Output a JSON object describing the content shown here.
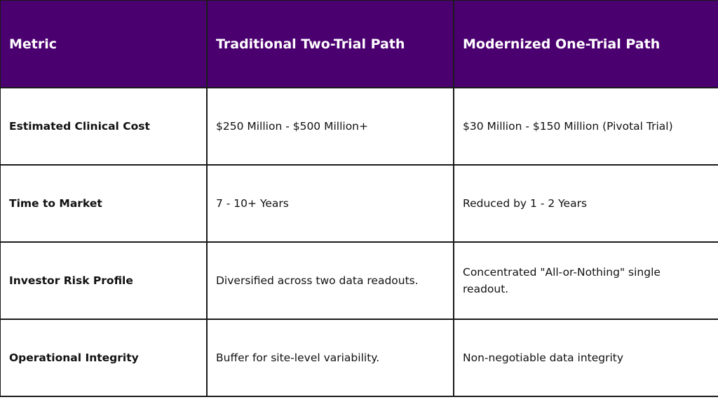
{
  "table": {
    "header": [
      "Metric",
      "Traditional Two-Trial Path",
      "Modernized One-Trial Path"
    ],
    "rows": [
      [
        "Estimated Clinical Cost",
        "$250 Million - $500 Million+",
        "$30 Million - $150 Million (Pivotal Trial)"
      ],
      [
        "Time to Market",
        "7 - 10+ Years",
        "Reduced by 1 - 2 Years"
      ],
      [
        "Investor Risk Profile",
        "Diversified across two data readouts.",
        "Concentrated \"All-or-Nothing\" single readout."
      ],
      [
        "Operational Integrity",
        "Buffer for site-level variability.",
        "Non-negotiable data integrity"
      ]
    ]
  }
}
